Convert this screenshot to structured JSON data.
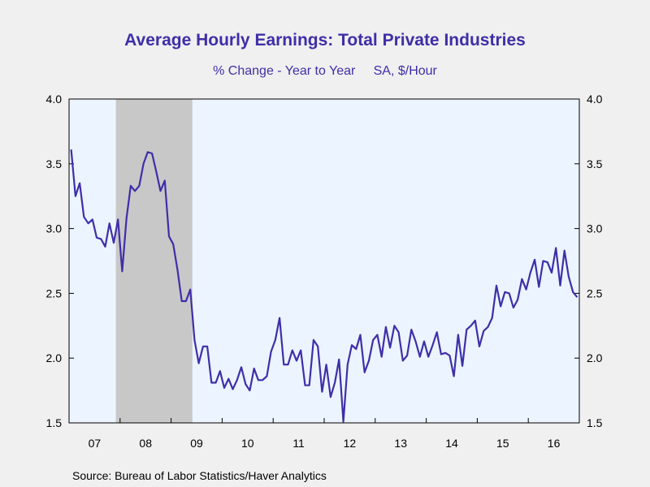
{
  "chart_data": {
    "type": "line",
    "title": "Average Hourly Earnings: Total Private Industries",
    "subtitle_left": "% Change - Year to Year",
    "subtitle_right": "SA, $/Hour",
    "source": "Source:  Bureau of Labor Statistics/Haver Analytics",
    "ylim": [
      1.5,
      4.0
    ],
    "yticks": [
      "1.5",
      "2.0",
      "2.5",
      "3.0",
      "3.5",
      "4.0"
    ],
    "xlim": [
      2007.0,
      2017.0
    ],
    "xticks": [
      "07",
      "08",
      "09",
      "10",
      "11",
      "12",
      "13",
      "14",
      "15",
      "16"
    ],
    "recession": [
      2007.917,
      2009.417
    ],
    "colors": {
      "line": "#3f2ea8",
      "plot_bg": "#ecf4ff",
      "recession": "#c8c8c8",
      "page_bg": "#f0f0f0"
    },
    "series": [
      {
        "values": [
          3.61,
          3.25,
          3.35,
          3.09,
          3.04,
          3.07,
          2.93,
          2.92,
          2.86,
          3.04,
          2.89,
          3.07,
          2.67,
          3.08,
          3.33,
          3.29,
          3.33,
          3.5,
          3.59,
          3.58,
          3.44,
          3.29,
          3.37,
          2.94,
          2.88,
          2.68,
          2.44,
          2.44,
          2.53,
          2.14,
          1.96,
          2.09,
          2.09,
          1.81,
          1.81,
          1.9,
          1.77,
          1.84,
          1.76,
          1.83,
          1.93,
          1.8,
          1.75,
          1.92,
          1.83,
          1.83,
          1.86,
          2.05,
          2.14,
          2.31,
          1.95,
          1.95,
          2.06,
          1.98,
          2.06,
          1.79,
          1.79,
          2.14,
          2.09,
          1.74,
          1.95,
          1.7,
          1.81,
          1.99,
          1.51,
          1.95,
          2.1,
          2.07,
          2.18,
          1.89,
          1.98,
          2.14,
          2.18,
          2.01,
          2.24,
          2.08,
          2.25,
          2.2,
          1.98,
          2.02,
          2.22,
          2.13,
          2.01,
          2.13,
          2.01,
          2.1,
          2.2,
          2.03,
          2.04,
          2.02,
          1.86,
          2.18,
          1.94,
          2.22,
          2.25,
          2.29,
          2.09,
          2.21,
          2.24,
          2.31,
          2.56,
          2.4,
          2.51,
          2.5,
          2.39,
          2.45,
          2.61,
          2.53,
          2.66,
          2.76,
          2.55,
          2.75,
          2.74,
          2.66,
          2.85,
          2.56,
          2.83,
          2.63,
          2.51,
          2.47
        ]
      }
    ]
  }
}
